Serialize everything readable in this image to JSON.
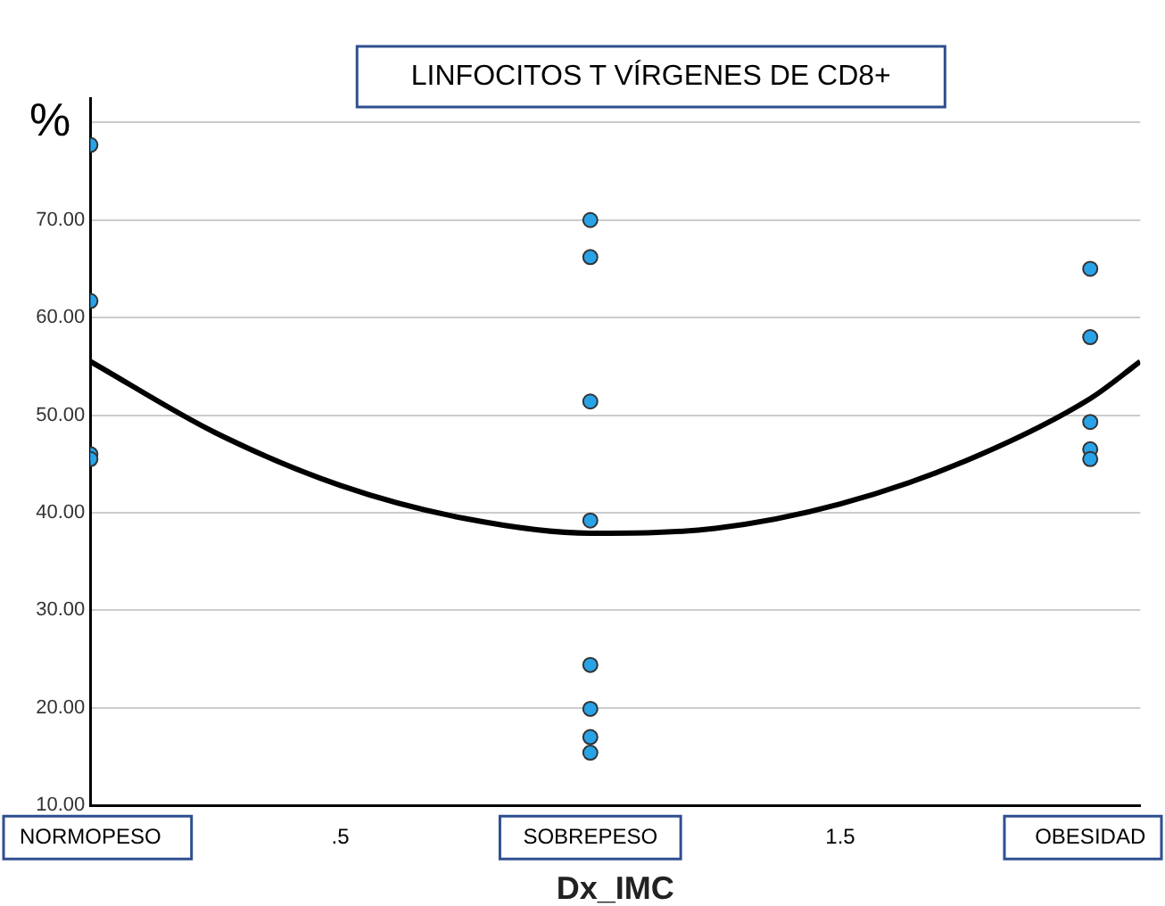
{
  "chart_data": {
    "type": "scatter",
    "title": "LINFOCITOS T VÍRGENES DE CD8+",
    "xlabel": "Dx_IMC",
    "ylabel": "%",
    "xlim": [
      0,
      2.1
    ],
    "xticks": [
      {
        "value": 0,
        "label": "NORMOPESO"
      },
      {
        "value": 0.5,
        "label": ".5"
      },
      {
        "value": 1,
        "label": "SOBREPESO"
      },
      {
        "value": 1.5,
        "label": "1.5"
      },
      {
        "value": 2,
        "label": "OBESIDAD"
      }
    ],
    "ylim": [
      10,
      82.5
    ],
    "yticks": [
      {
        "value": 10,
        "label": "10.00"
      },
      {
        "value": 20,
        "label": "20.00"
      },
      {
        "value": 30,
        "label": "30.00"
      },
      {
        "value": 40,
        "label": "40.00"
      },
      {
        "value": 50,
        "label": "50.00"
      },
      {
        "value": 60,
        "label": "60.00"
      },
      {
        "value": 70,
        "label": "70.00"
      },
      {
        "value": 80,
        "label": null
      }
    ],
    "grid": "y",
    "legend": false,
    "series": [
      {
        "color": "#29a3e8",
        "marker": "circle",
        "x": [
          0,
          0,
          0,
          0,
          1,
          1,
          1,
          1,
          1,
          1,
          1,
          1,
          2,
          2,
          2,
          2,
          2
        ],
        "values": [
          77.7,
          61.7,
          46.0,
          45.5,
          70.0,
          66.2,
          51.4,
          39.2,
          24.4,
          19.9,
          17.0,
          15.4,
          65.0,
          58.0,
          49.3,
          46.5,
          45.5
        ]
      },
      {
        "type": "line",
        "color": "#000000",
        "marker": "none",
        "line_style": "solid",
        "x": [
          0,
          0.25,
          0.5,
          0.75,
          1,
          1.25,
          1.5,
          1.75,
          2,
          2.1
        ],
        "values": [
          55.5,
          48.2,
          42.8,
          39.4,
          37.9,
          38.4,
          40.9,
          45.3,
          51.7,
          55.5
        ]
      }
    ]
  }
}
